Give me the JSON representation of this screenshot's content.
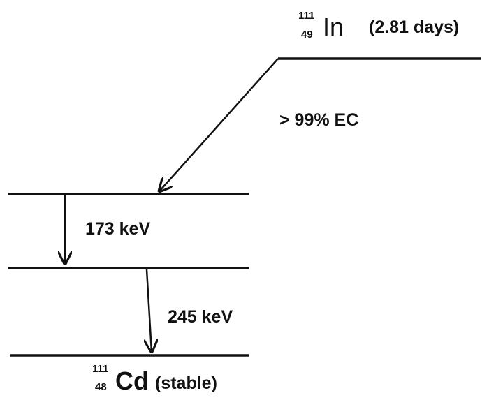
{
  "parent": {
    "mass_number": "111",
    "atomic_number": "49",
    "symbol": "In",
    "half_life": "(2.81 days)"
  },
  "transitions": [
    {
      "label": "> 99% EC"
    },
    {
      "label": "173 keV"
    },
    {
      "label": "245 keV"
    }
  ],
  "daughter": {
    "mass_number": "111",
    "atomic_number": "48",
    "symbol": "Cd",
    "half_life": "(stable)"
  }
}
